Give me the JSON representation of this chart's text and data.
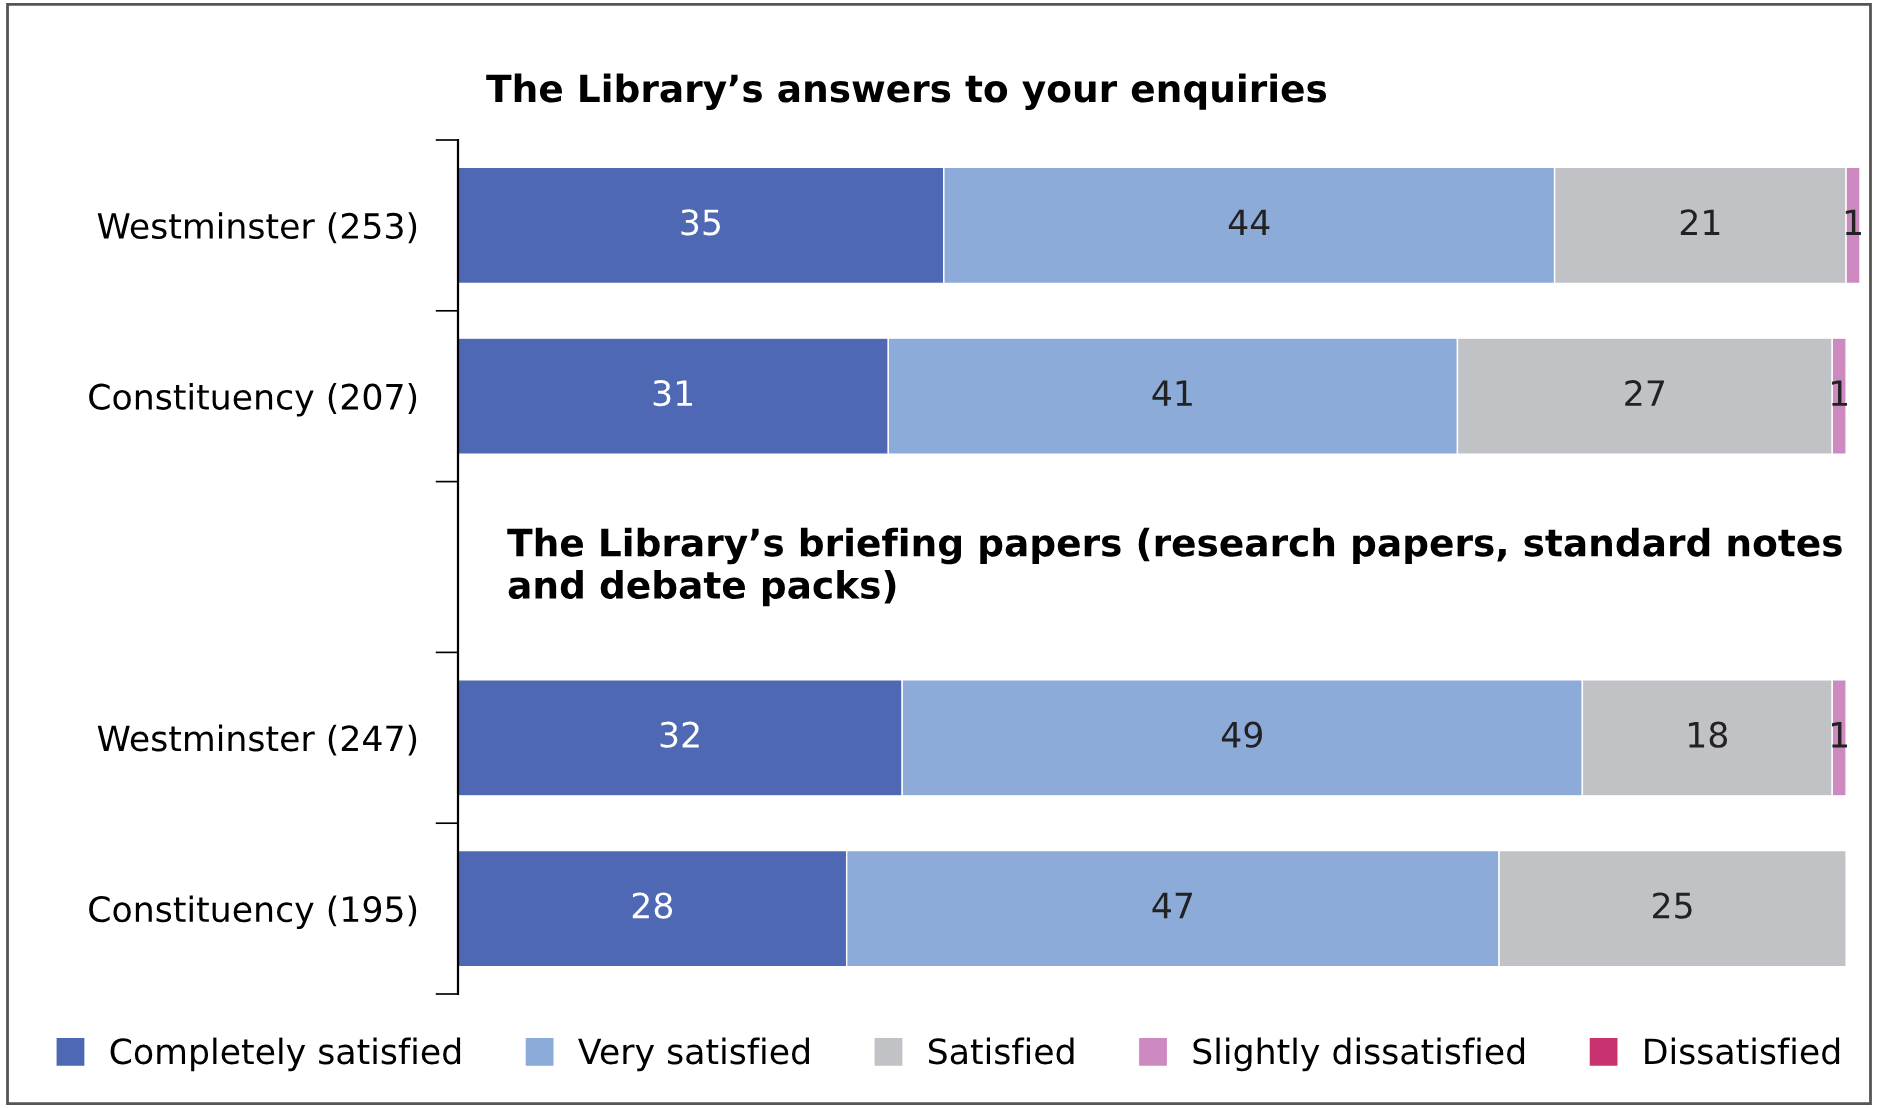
{
  "chart_data": {
    "type": "bar",
    "orientation": "horizontal",
    "stacked": true,
    "data_labels": true,
    "grid": false,
    "legend": "bottom",
    "title": "The Library’s answers to your enquiries",
    "annotations": [
      "The Library’s briefing papers (research papers, standard notes and debate packs)"
    ],
    "categories": [
      "Westminster (253)",
      "Constituency (207)",
      null,
      "Westminster (247)",
      "Constituency (195)"
    ],
    "series": [
      {
        "name": "Completely satisfied",
        "color": "#4f68b4",
        "values": [
          35,
          31,
          null,
          32,
          28
        ]
      },
      {
        "name": "Very satisfied",
        "color": "#8cabd8",
        "values": [
          44,
          41,
          null,
          49,
          47
        ]
      },
      {
        "name": "Satisfied",
        "color": "#c0c2c5",
        "values": [
          21,
          27,
          null,
          18,
          25
        ]
      },
      {
        "name": "Slightly dissatisfied",
        "color": "#cc8ac0",
        "values": [
          1,
          1,
          null,
          1,
          null
        ]
      },
      {
        "name": "Dissatisfied",
        "color": "#c8336f",
        "values": [
          null,
          null,
          null,
          null,
          null
        ]
      }
    ]
  }
}
